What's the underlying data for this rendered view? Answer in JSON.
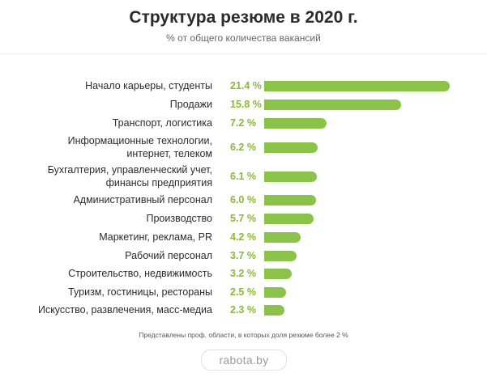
{
  "footnote": "Представлены проф. области, в которых доля резюме более 2 %",
  "brand": "rabota.by",
  "colors": {
    "bar": "#8bc34a",
    "value_text": "#8bb83a"
  },
  "chart_data": {
    "type": "bar",
    "orientation": "horizontal",
    "title": "Структура резюме в 2020 г.",
    "subtitle": "% от общего количества вакансий",
    "categories": [
      "Начало карьеры, студенты",
      "Продажи",
      "Транспорт, логистика",
      "Информационные технологии,\nинтернет, телеком",
      "Бухгалтерия, управленческий учет,\nфинансы предприятия",
      "Административный персонал",
      "Производство",
      "Маркетинг, реклама, PR",
      "Рабочий персонал",
      "Строительство, недвижимость",
      "Туризм, гостиницы, рестораны",
      "Искусство, развлечения, масс-медиа"
    ],
    "values": [
      21.4,
      15.8,
      7.2,
      6.2,
      6.1,
      6.0,
      5.7,
      4.2,
      3.7,
      3.2,
      2.5,
      2.3
    ],
    "value_labels": [
      "21.4 %",
      "15.8 %",
      "7.2 %",
      "6.2 %",
      "6.1 %",
      "6.0 %",
      "5.7 %",
      "4.2 %",
      "3.7 %",
      "3.2 %",
      "2.5 %",
      "2.3 %"
    ],
    "unit": "%",
    "xlim": [
      0,
      21.4
    ],
    "grid": false,
    "legend": false
  }
}
